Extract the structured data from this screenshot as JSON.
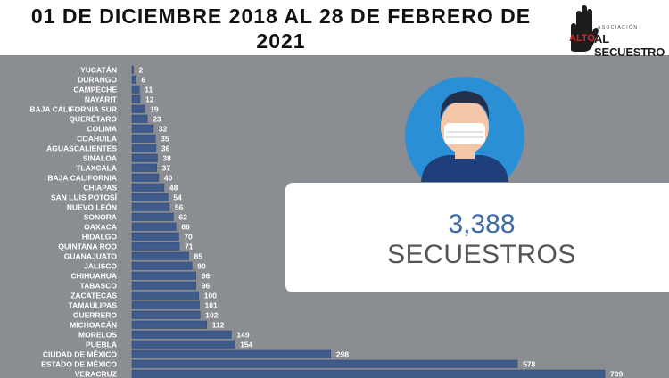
{
  "header": {
    "title": "01 DE DICIEMBRE 2018 AL 28 DE FEBRERO DE 2021",
    "logo_top": "ASOCIACIÓN",
    "logo_red": "ALTO",
    "logo_main": "AL SECUESTRO"
  },
  "summary": {
    "total": "3,388",
    "label": "SECUESTROS"
  },
  "colors": {
    "background": "#8a8d92",
    "bar": "#3f5b8c",
    "accent_blue": "#3d6aa8",
    "logo_red": "#d3242b"
  },
  "icons": [
    "hand-stop-icon",
    "person-face-mask-icon"
  ],
  "chart_data": {
    "type": "bar",
    "orientation": "horizontal",
    "categories": [
      "YUCATÁN",
      "DURANGO",
      "CAMPECHE",
      "NAYARIT",
      "BAJA CALIFORNIA SUR",
      "QUERÉTARO",
      "COLIMA",
      "COAHUILA",
      "AGUASCALIENTES",
      "SINALOA",
      "TLAXCALA",
      "BAJA CALIFORNIA",
      "CHIAPAS",
      "SAN LUIS POTOSÍ",
      "NUEVO LEÓN",
      "SONORA",
      "OAXACA",
      "HIDALGO",
      "QUINTANA ROO",
      "GUANAJUATO",
      "JALISCO",
      "CHIHUAHUA",
      "TABASCO",
      "ZACATECAS",
      "TAMAULIPAS",
      "GUERRERO",
      "MICHOACÁN",
      "MORELOS",
      "PUEBLA",
      "CIUDAD DE MÉXICO",
      "ESTADO DE MÉXICO",
      "VERACRUZ"
    ],
    "values": [
      2,
      6,
      11,
      12,
      19,
      23,
      32,
      35,
      36,
      38,
      37,
      40,
      48,
      54,
      56,
      62,
      66,
      70,
      71,
      85,
      90,
      96,
      96,
      100,
      101,
      102,
      112,
      149,
      154,
      298,
      578,
      709
    ],
    "data_labels": true,
    "grid": false,
    "legend": "none"
  }
}
